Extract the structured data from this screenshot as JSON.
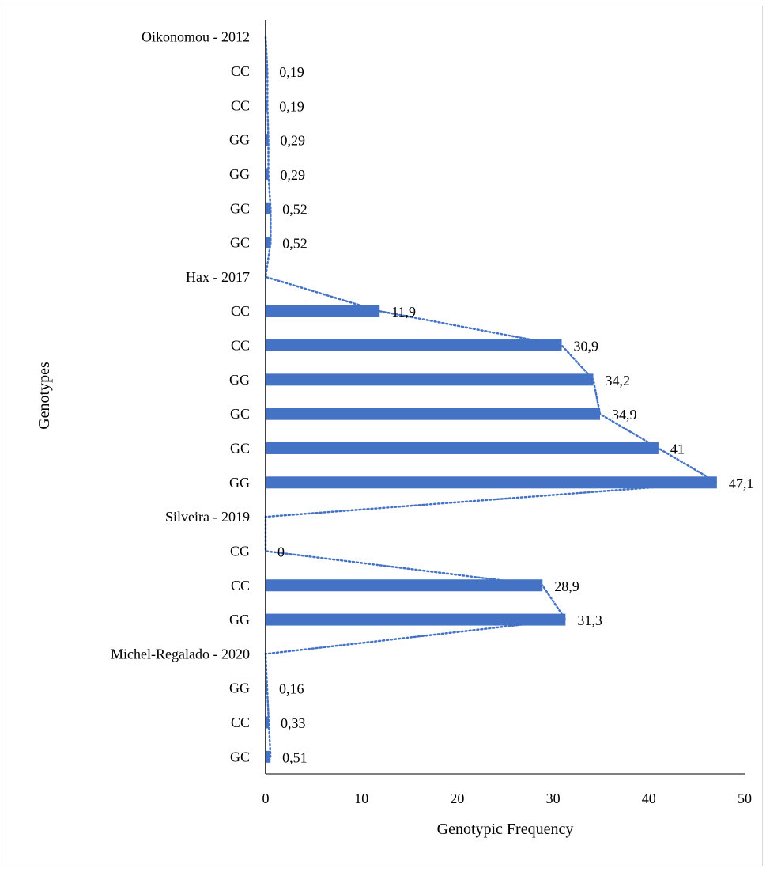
{
  "chart_data": {
    "type": "bar",
    "orientation": "horizontal",
    "xlabel": "Genotypic Frequency",
    "ylabel": "Genotypes",
    "xlim": [
      0,
      50
    ],
    "xticks": [
      "0",
      "10",
      "20",
      "30",
      "40",
      "50"
    ],
    "grid": false,
    "legend": "none",
    "bar_color": "#4472c4",
    "trendline": "dotted",
    "categories": [
      "Oikonomou - 2012",
      "CC",
      "CC",
      "GG",
      "GG",
      "GC",
      "GC",
      "Hax - 2017",
      "CC",
      "CC",
      "GG",
      "GC",
      "GC",
      "GG",
      "Silveira - 2019",
      "CG",
      "CC",
      "GG",
      "Michel-Regalado - 2020",
      "GG",
      "CC",
      "GC"
    ],
    "values": [
      null,
      0.19,
      0.19,
      0.29,
      0.29,
      0.52,
      0.52,
      null,
      11.9,
      30.9,
      34.2,
      34.9,
      41,
      47.1,
      null,
      0,
      28.9,
      31.3,
      null,
      0.16,
      0.33,
      0.51
    ],
    "data_labels": [
      "",
      "0,19",
      "0,19",
      "0,29",
      "0,29",
      "0,52",
      "0,52",
      "",
      "11,9",
      "30,9",
      "34,2",
      "34,9",
      "41",
      "47,1",
      "",
      "0",
      "28,9",
      "31,3",
      "",
      "0,16",
      "0,33",
      "0,51"
    ]
  }
}
